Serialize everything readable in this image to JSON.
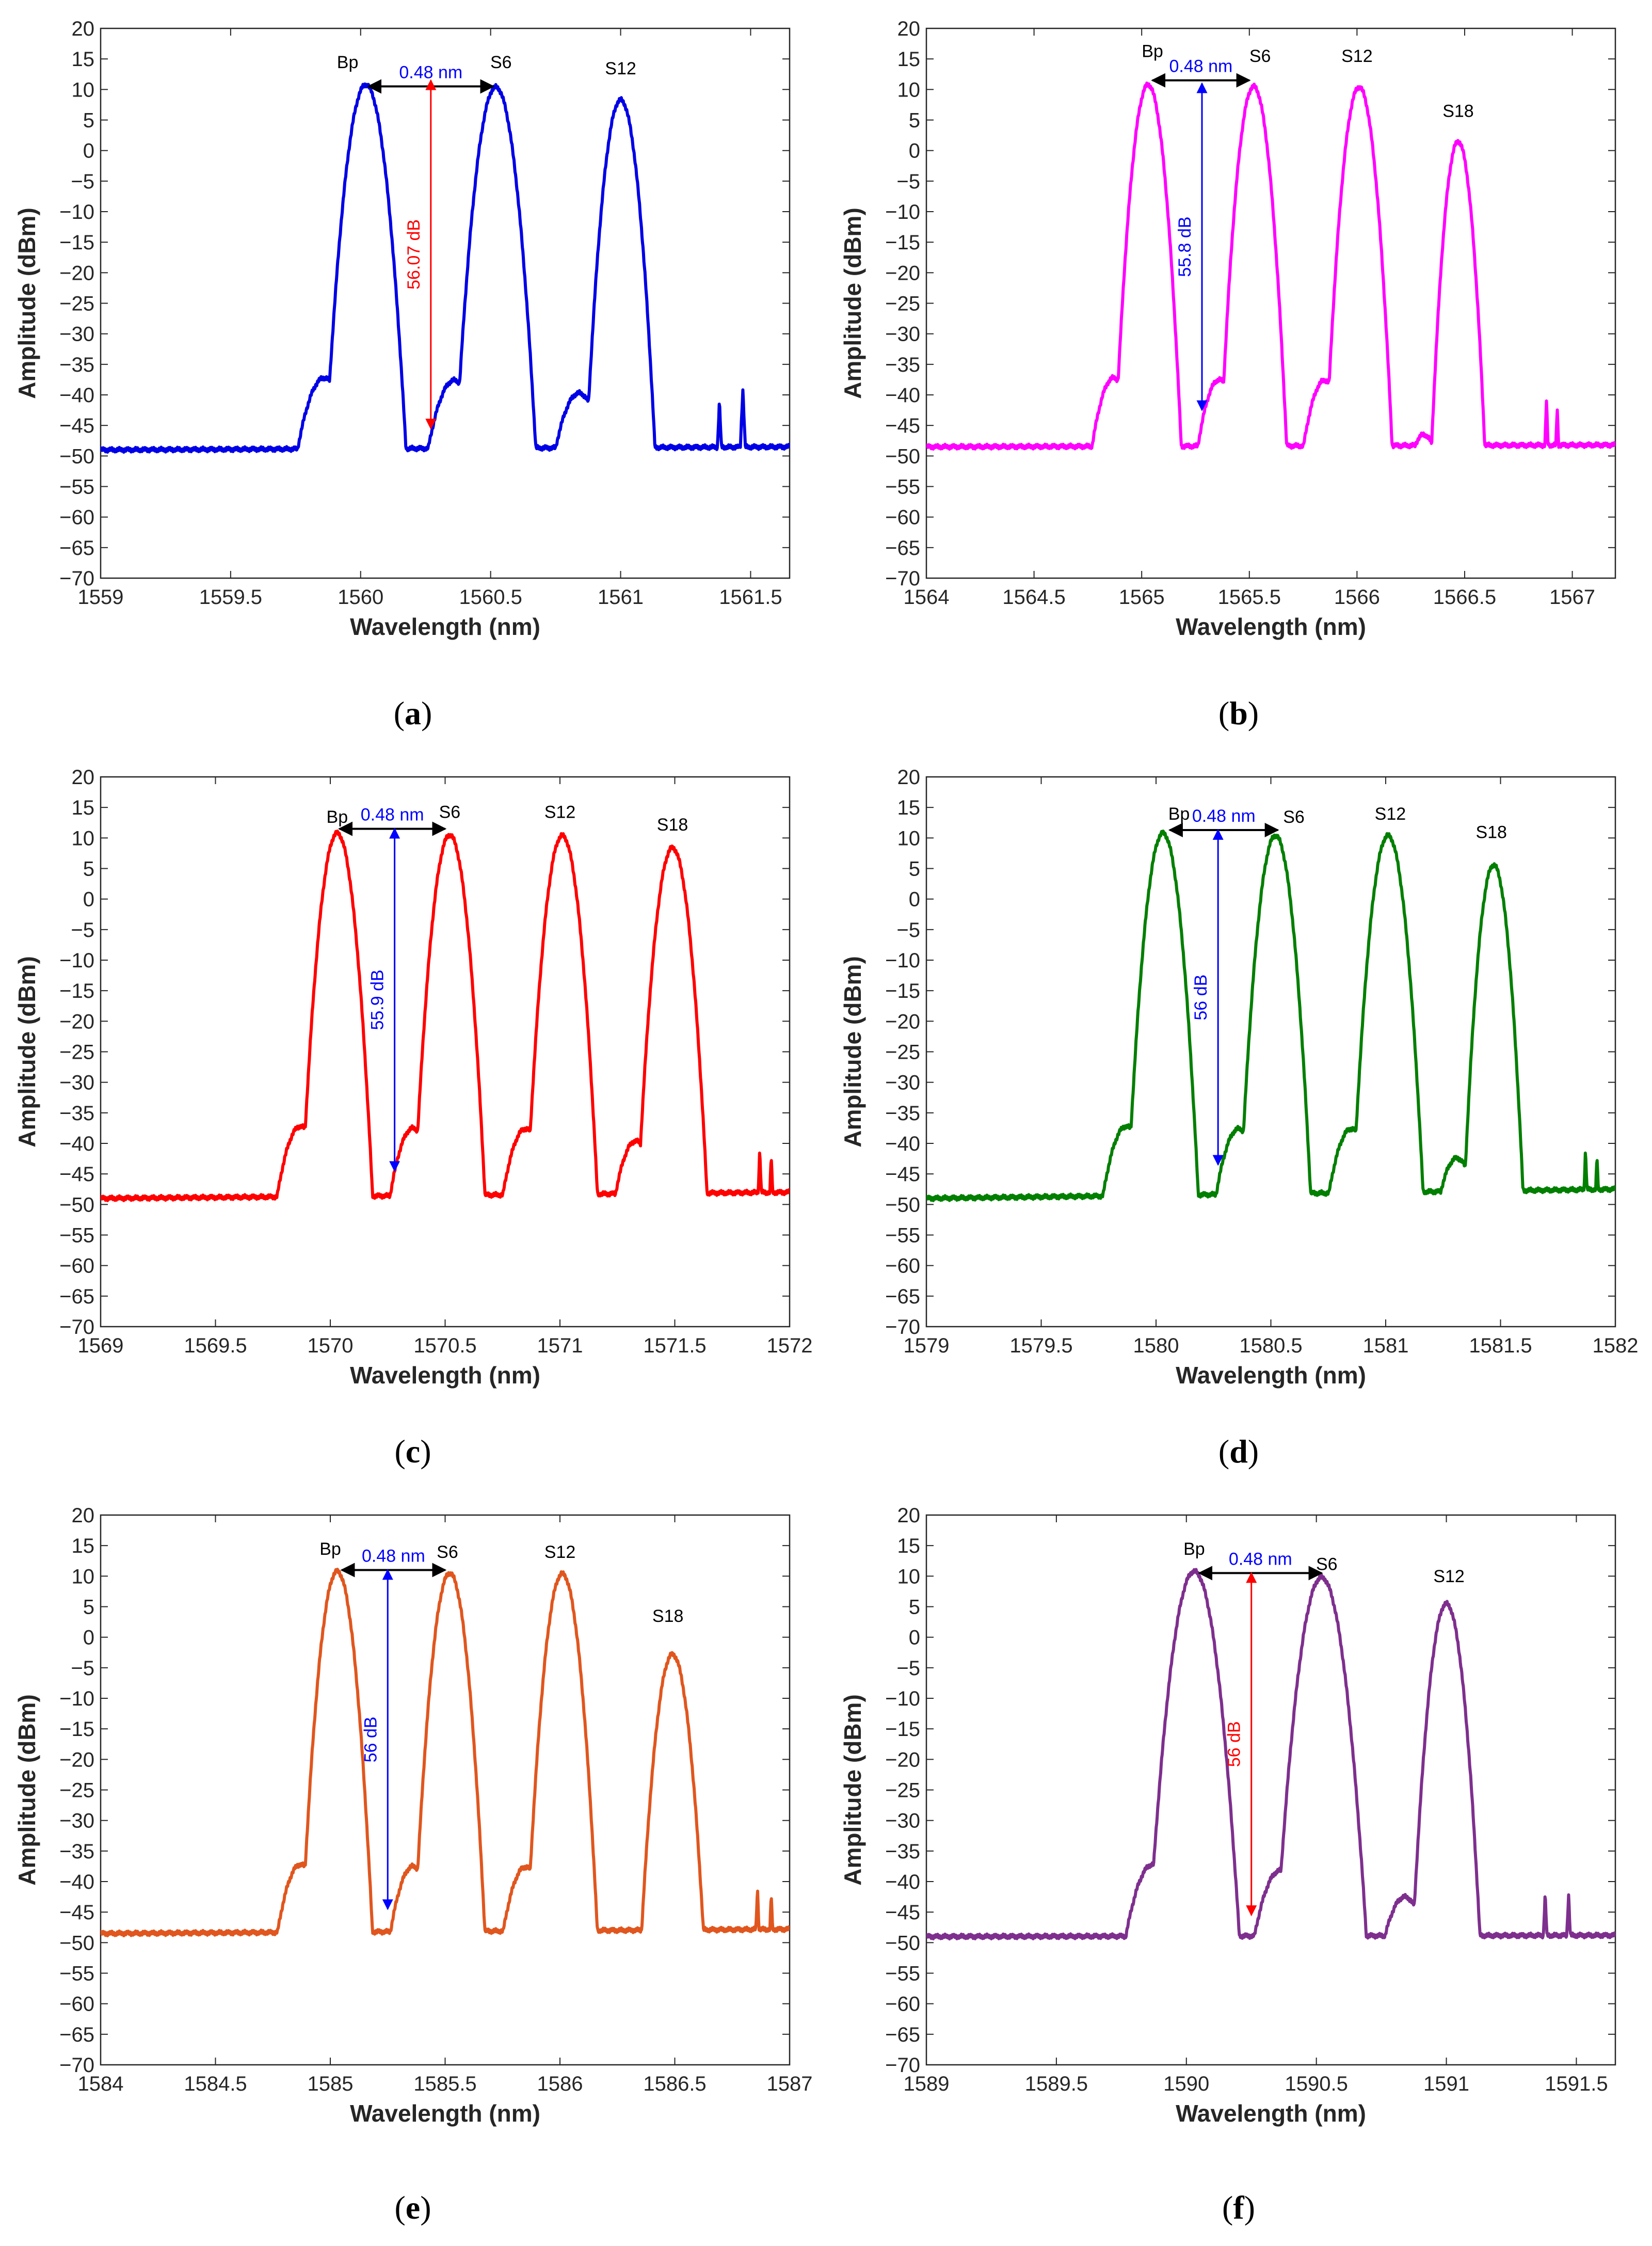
{
  "chart_data": [
    {
      "type": "line",
      "panel": "a",
      "caption": "a",
      "color": "#0000e6",
      "xlabel": "Wavelength (nm)",
      "ylabel": "Amplitude (dBm)",
      "xlim": [
        1559,
        1561.65
      ],
      "ylim": [
        -70,
        20
      ],
      "xticks": [
        1559,
        1559.5,
        1560,
        1560.5,
        1561,
        1561.5
      ],
      "xtick_labels": [
        "1559",
        "1559.5",
        "1560",
        "1560.5",
        "1561",
        "1561.5"
      ],
      "yticks": [
        -70,
        -65,
        -60,
        -55,
        -50,
        -45,
        -40,
        -35,
        -30,
        -25,
        -20,
        -15,
        -10,
        -5,
        0,
        5,
        10,
        15,
        20
      ],
      "ytick_labels": [
        "−70",
        "−65",
        "−60",
        "−55",
        "−50",
        "−45",
        "−40",
        "−35",
        "−30",
        "−25",
        "−20",
        "−15",
        "−10",
        "−5",
        "0",
        "5",
        "10",
        "15",
        "20"
      ],
      "baseline_start": -49,
      "baseline_end": -48.5,
      "peaks": [
        {
          "x": 1560.02,
          "y": 10.8,
          "w": 0.04,
          "sh": true
        },
        {
          "x": 1560.52,
          "y": 10.4,
          "w": 0.04,
          "sh": true
        },
        {
          "x": 1561.0,
          "y": 8.3,
          "w": 0.035,
          "sh": true
        }
      ],
      "spikes": [
        {
          "x": 1561.38,
          "y": -41
        },
        {
          "x": 1561.47,
          "y": -39
        }
      ],
      "labels": [
        {
          "text": "Bp",
          "x": 1559.95,
          "y": 13.5
        },
        {
          "text": "S6",
          "x": 1560.54,
          "y": 13.5
        },
        {
          "text": "S12",
          "x": 1561.0,
          "y": 12.5
        }
      ],
      "spacing": {
        "text": "0.48 nm",
        "x1": 1560.03,
        "x2": 1560.51,
        "y": 10.5,
        "color": "#0000ff",
        "arrow_color": "#000000"
      },
      "depth": {
        "text": "56.07 dB",
        "x": 1560.27,
        "y1": 11.5,
        "y2": -45.5,
        "color": "#ff0000"
      }
    },
    {
      "type": "line",
      "panel": "b",
      "caption": "b",
      "color": "#ff00ff",
      "xlabel": "Wavelength (nm)",
      "ylabel": "Amplitude (dBm)",
      "xlim": [
        1564,
        1567.2
      ],
      "ylim": [
        -70,
        20
      ],
      "xticks": [
        1564,
        1564.5,
        1565,
        1565.5,
        1566,
        1566.5,
        1567
      ],
      "xtick_labels": [
        "1564",
        "1564.5",
        "1565",
        "1565.5",
        "1566",
        "1566.5",
        "1567"
      ],
      "yticks": [
        -70,
        -65,
        -60,
        -55,
        -50,
        -45,
        -40,
        -35,
        -30,
        -25,
        -20,
        -15,
        -10,
        -5,
        0,
        5,
        10,
        15,
        20
      ],
      "ytick_labels": [
        "−70",
        "−65",
        "−60",
        "−55",
        "−50",
        "−45",
        "−40",
        "−35",
        "−30",
        "−25",
        "−20",
        "−15",
        "−10",
        "−5",
        "0",
        "5",
        "10",
        "15",
        "20"
      ],
      "baseline_start": -48.5,
      "baseline_end": -48.2,
      "peaks": [
        {
          "x": 1565.03,
          "y": 10.8,
          "w": 0.04,
          "sh": true
        },
        {
          "x": 1565.52,
          "y": 10.5,
          "w": 0.04,
          "sh": true
        },
        {
          "x": 1566.01,
          "y": 10.4,
          "w": 0.04,
          "sh": true
        },
        {
          "x": 1566.47,
          "y": 1.5,
          "w": 0.035,
          "sh": true
        }
      ],
      "spikes": [
        {
          "x": 1566.88,
          "y": -41
        },
        {
          "x": 1566.93,
          "y": -42
        }
      ],
      "labels": [
        {
          "text": "Bp",
          "x": 1565.05,
          "y": 15.3
        },
        {
          "text": "S6",
          "x": 1565.55,
          "y": 14.5
        },
        {
          "text": "S12",
          "x": 1566.0,
          "y": 14.5
        },
        {
          "text": "S18",
          "x": 1566.47,
          "y": 5.5
        }
      ],
      "spacing": {
        "text": "0.48 nm",
        "x1": 1565.05,
        "x2": 1565.5,
        "y": 11.5,
        "color": "#0000ff",
        "arrow_color": "#000000"
      },
      "depth": {
        "text": "55.8 dB",
        "x": 1565.28,
        "y1": 11.0,
        "y2": -42.5,
        "color": "#0000ff"
      }
    },
    {
      "type": "line",
      "panel": "c",
      "caption": "c",
      "color": "#ff0000",
      "xlabel": "Wavelength (nm)",
      "ylabel": "Amplitude (dBm)",
      "xlim": [
        1569,
        1572
      ],
      "ylim": [
        -70,
        20
      ],
      "xticks": [
        1569,
        1569.5,
        1570,
        1570.5,
        1571,
        1571.5,
        1572
      ],
      "xtick_labels": [
        "1569",
        "1569.5",
        "1570",
        "1570.5",
        "1571",
        "1571.5",
        "1572"
      ],
      "yticks": [
        -70,
        -65,
        -60,
        -55,
        -50,
        -45,
        -40,
        -35,
        -30,
        -25,
        -20,
        -15,
        -10,
        -5,
        0,
        5,
        10,
        15,
        20
      ],
      "ytick_labels": [
        "−70",
        "−65",
        "−60",
        "−55",
        "−50",
        "−45",
        "−40",
        "−35",
        "−30",
        "−25",
        "−20",
        "−15",
        "−10",
        "−5",
        "0",
        "5",
        "10",
        "15",
        "20"
      ],
      "baseline_start": -49,
      "baseline_end": -48,
      "peaks": [
        {
          "x": 1570.03,
          "y": 10.8,
          "w": 0.04,
          "sh": true
        },
        {
          "x": 1570.52,
          "y": 10.5,
          "w": 0.04,
          "sh": true
        },
        {
          "x": 1571.01,
          "y": 10.4,
          "w": 0.04,
          "sh": true
        },
        {
          "x": 1571.49,
          "y": 8.4,
          "w": 0.04,
          "sh": true
        }
      ],
      "spikes": [
        {
          "x": 1571.87,
          "y": -41
        },
        {
          "x": 1571.92,
          "y": -42
        }
      ],
      "labels": [
        {
          "text": "Bp",
          "x": 1570.03,
          "y": 12.5
        },
        {
          "text": "S6",
          "x": 1570.52,
          "y": 13.3
        },
        {
          "text": "S12",
          "x": 1571.0,
          "y": 13.3
        },
        {
          "text": "S18",
          "x": 1571.49,
          "y": 11.2
        }
      ],
      "spacing": {
        "text": "0.48 nm",
        "x1": 1570.04,
        "x2": 1570.5,
        "y": 11.5,
        "color": "#0000ff",
        "arrow_color": "#000000"
      },
      "depth": {
        "text": "55.9 dB",
        "x": 1570.28,
        "y1": 11.5,
        "y2": -44.5,
        "color": "#0000ff"
      }
    },
    {
      "type": "line",
      "panel": "d",
      "caption": "d",
      "color": "#007f00",
      "xlabel": "Wavelength (nm)",
      "ylabel": "Amplitude (dBm)",
      "xlim": [
        1579,
        1582
      ],
      "ylim": [
        -70,
        20
      ],
      "xticks": [
        1579,
        1579.5,
        1580,
        1580.5,
        1581,
        1581.5,
        1582
      ],
      "xtick_labels": [
        "1579",
        "1579.5",
        "1580",
        "1580.5",
        "1581",
        "1581.5",
        "1582"
      ],
      "yticks": [
        -70,
        -65,
        -60,
        -55,
        -50,
        -45,
        -40,
        -35,
        -30,
        -25,
        -20,
        -15,
        -10,
        -5,
        0,
        5,
        10,
        15,
        20
      ],
      "ytick_labels": [
        "−70",
        "−65",
        "−60",
        "−55",
        "−50",
        "−45",
        "−40",
        "−35",
        "−30",
        "−25",
        "−20",
        "−15",
        "−10",
        "−5",
        "0",
        "5",
        "10",
        "15",
        "20"
      ],
      "baseline_start": -49,
      "baseline_end": -47.5,
      "peaks": [
        {
          "x": 1580.03,
          "y": 10.8,
          "w": 0.04,
          "sh": true
        },
        {
          "x": 1580.52,
          "y": 10.4,
          "w": 0.04,
          "sh": true
        },
        {
          "x": 1581.01,
          "y": 10.4,
          "w": 0.04,
          "sh": true
        },
        {
          "x": 1581.47,
          "y": 5.6,
          "w": 0.035,
          "sh": true
        }
      ],
      "spikes": [
        {
          "x": 1581.87,
          "y": -41
        },
        {
          "x": 1581.92,
          "y": -42
        }
      ],
      "labels": [
        {
          "text": "Bp",
          "x": 1580.1,
          "y": 13.0
        },
        {
          "text": "S6",
          "x": 1580.6,
          "y": 12.5
        },
        {
          "text": "S12",
          "x": 1581.02,
          "y": 13.0
        },
        {
          "text": "S18",
          "x": 1581.46,
          "y": 10.0
        }
      ],
      "spacing": {
        "text": "0.48 nm",
        "x1": 1580.06,
        "x2": 1580.53,
        "y": 11.3,
        "color": "#0000ff",
        "arrow_color": "#000000"
      },
      "depth": {
        "text": "56 dB",
        "x": 1580.27,
        "y1": 11.3,
        "y2": -43.5,
        "color": "#0000ff"
      }
    },
    {
      "type": "line",
      "panel": "e",
      "caption": "e",
      "color": "#e0561e",
      "xlabel": "Wavelength (nm)",
      "ylabel": "Amplitude (dBm)",
      "xlim": [
        1584,
        1587
      ],
      "ylim": [
        -70,
        20
      ],
      "xticks": [
        1584,
        1584.5,
        1585,
        1585.5,
        1586,
        1586.5,
        1587
      ],
      "xtick_labels": [
        "1584",
        "1584.5",
        "1585",
        "1585.5",
        "1586",
        "1586.5",
        "1587"
      ],
      "yticks": [
        -70,
        -65,
        -60,
        -55,
        -50,
        -45,
        -40,
        -35,
        -30,
        -25,
        -20,
        -15,
        -10,
        -5,
        0,
        5,
        10,
        15,
        20
      ],
      "ytick_labels": [
        "−70",
        "−65",
        "−60",
        "−55",
        "−50",
        "−45",
        "−40",
        "−35",
        "−30",
        "−25",
        "−20",
        "−15",
        "−10",
        "−5",
        "0",
        "5",
        "10",
        "15",
        "20"
      ],
      "baseline_start": -48.5,
      "baseline_end": -47.8,
      "peaks": [
        {
          "x": 1585.03,
          "y": 10.8,
          "w": 0.04,
          "sh": true
        },
        {
          "x": 1585.52,
          "y": 10.5,
          "w": 0.04,
          "sh": true
        },
        {
          "x": 1586.01,
          "y": 10.4,
          "w": 0.04,
          "sh": true
        },
        {
          "x": 1586.49,
          "y": -2.8,
          "w": 0.04,
          "sh": true
        }
      ],
      "spikes": [
        {
          "x": 1586.86,
          "y": -41
        },
        {
          "x": 1586.92,
          "y": -42
        }
      ],
      "labels": [
        {
          "text": "Bp",
          "x": 1585.0,
          "y": 13.5
        },
        {
          "text": "S6",
          "x": 1585.51,
          "y": 13.0
        },
        {
          "text": "S12",
          "x": 1586.0,
          "y": 13.0
        },
        {
          "text": "S18",
          "x": 1586.47,
          "y": 2.5
        }
      ],
      "spacing": {
        "text": "0.48 nm",
        "x1": 1585.05,
        "x2": 1585.5,
        "y": 11.0,
        "color": "#0000ff",
        "arrow_color": "#000000"
      },
      "depth": {
        "text": "56 dB",
        "x": 1585.25,
        "y1": 11.0,
        "y2": -44.5,
        "color": "#0000ff"
      }
    },
    {
      "type": "line",
      "panel": "f",
      "caption": "f",
      "color": "#7e2f8e",
      "xlabel": "Wavelength (nm)",
      "ylabel": "Amplitude (dBm)",
      "xlim": [
        1589,
        1591.65
      ],
      "ylim": [
        -70,
        20
      ],
      "xticks": [
        1589,
        1589.5,
        1590,
        1590.5,
        1591,
        1591.5
      ],
      "xtick_labels": [
        "1589",
        "1589.5",
        "1590",
        "1590.5",
        "1591",
        "1591.5"
      ],
      "yticks": [
        -70,
        -65,
        -60,
        -55,
        -50,
        -45,
        -40,
        -35,
        -30,
        -25,
        -20,
        -15,
        -10,
        -5,
        0,
        5,
        10,
        15,
        20
      ],
      "ytick_labels": [
        "−70",
        "−65",
        "−60",
        "−55",
        "−50",
        "−45",
        "−40",
        "−35",
        "−30",
        "−25",
        "−20",
        "−15",
        "−10",
        "−5",
        "0",
        "5",
        "10",
        "15",
        "20"
      ],
      "baseline_start": -49,
      "baseline_end": -48.8,
      "peaks": [
        {
          "x": 1590.03,
          "y": 10.8,
          "w": 0.045,
          "sh": true
        },
        {
          "x": 1590.52,
          "y": 9.8,
          "w": 0.045,
          "sh": true
        },
        {
          "x": 1591.0,
          "y": 5.5,
          "w": 0.035,
          "sh": true
        }
      ],
      "spikes": [
        {
          "x": 1591.38,
          "y": -42
        },
        {
          "x": 1591.47,
          "y": -42
        }
      ],
      "labels": [
        {
          "text": "Bp",
          "x": 1590.03,
          "y": 13.5
        },
        {
          "text": "S6",
          "x": 1590.54,
          "y": 11.0
        },
        {
          "text": "S12",
          "x": 1591.01,
          "y": 9.0
        }
      ],
      "spacing": {
        "text": "0.48 nm",
        "x1": 1590.05,
        "x2": 1590.52,
        "y": 10.5,
        "color": "#0000ff",
        "arrow_color": "#000000"
      },
      "depth": {
        "text": "56 dB",
        "x": 1590.25,
        "y1": 10.5,
        "y2": -45.5,
        "color": "#ff0000"
      }
    }
  ]
}
